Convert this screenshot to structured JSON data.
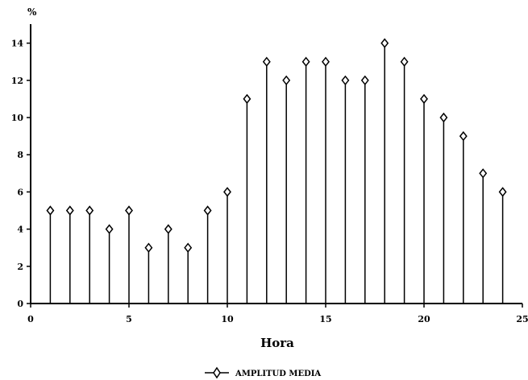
{
  "chart_data": {
    "type": "stem",
    "ylabel": "%",
    "xlabel": "Hora",
    "xlim": [
      0,
      25
    ],
    "ylim": [
      0,
      15
    ],
    "x_ticks": [
      "0",
      "5",
      "10",
      "15",
      "20",
      "25"
    ],
    "y_ticks": [
      "0",
      "2",
      "4",
      "6",
      "8",
      "10",
      "12",
      "14"
    ],
    "grid": false,
    "legend_position": "bottom-center",
    "series": [
      {
        "name": "AMPLITUD MEDIA",
        "marker": "diamond",
        "color": "#000000",
        "x": [
          1,
          2,
          3,
          4,
          5,
          6,
          7,
          8,
          9,
          10,
          11,
          12,
          13,
          14,
          15,
          16,
          17,
          18,
          19,
          20,
          21,
          22,
          23,
          24
        ],
        "values": [
          5,
          5,
          5,
          4,
          5,
          3,
          4,
          3,
          5,
          6,
          11,
          13,
          12,
          13,
          13,
          12,
          12,
          14,
          13,
          11,
          10,
          9,
          7,
          6
        ]
      }
    ]
  }
}
